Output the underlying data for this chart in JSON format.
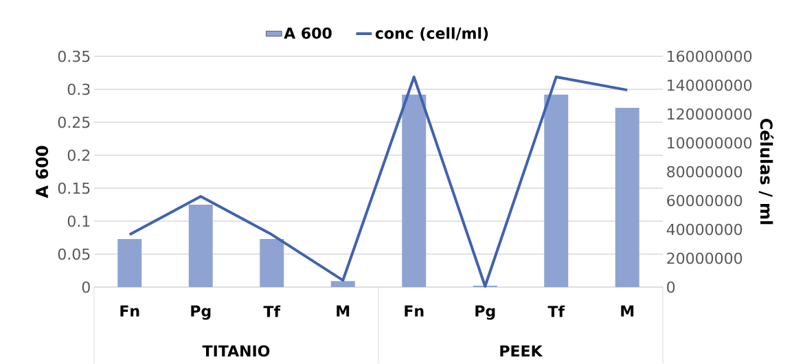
{
  "chart_data": {
    "type": "bar",
    "categories": [
      "Fn",
      "Pg",
      "Tf",
      "M",
      "Fn",
      "Pg",
      "Tf",
      "M"
    ],
    "ylabel": "A 600",
    "y2label": "Células / ml",
    "annotations": [
      "TITANIO",
      "PEEK"
    ],
    "ylim": [
      0,
      0.35
    ],
    "yticks": [
      0,
      0.05,
      0.1,
      0.15,
      0.2,
      0.25,
      0.3,
      0.35
    ],
    "y2lim": [
      0,
      160000000
    ],
    "y2ticks": [
      0,
      20000000,
      40000000,
      60000000,
      80000000,
      100000000,
      120000000,
      140000000,
      160000000
    ],
    "grid": "y",
    "legend": "top",
    "series": [
      {
        "name": "A 600",
        "color": "#8fa3d3",
        "values": [
          0.073,
          0.125,
          0.073,
          0.009,
          0.292,
          0.002,
          0.292,
          0.272
        ]
      },
      {
        "name": "conc (cell/ml)",
        "type": "line",
        "axis": "y2",
        "color": "#3f63ad",
        "values": [
          36400000,
          62900000,
          36400000,
          4700000,
          145700000,
          600000,
          145700000,
          136600000
        ]
      }
    ]
  }
}
